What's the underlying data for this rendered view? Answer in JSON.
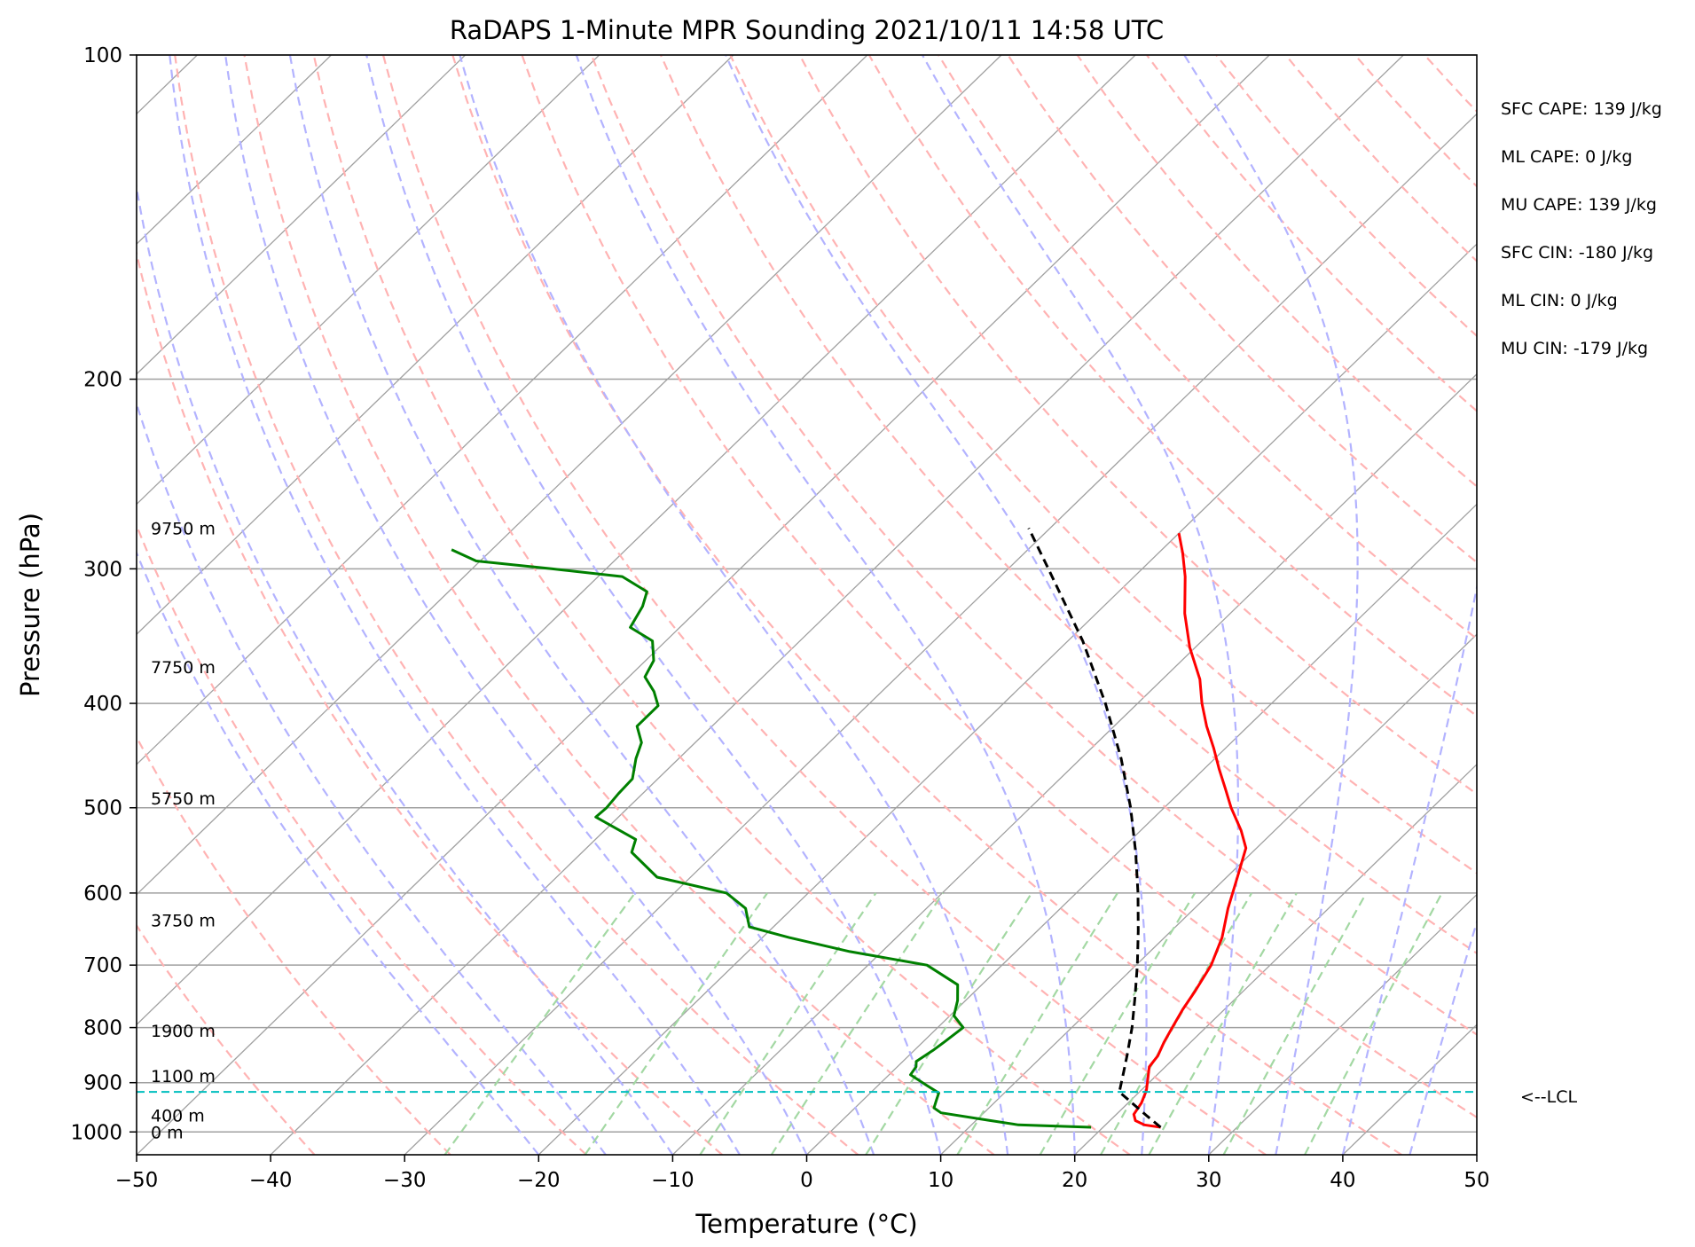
{
  "chart_data": {
    "type": "line",
    "title": "RaDAPS 1-Minute MPR Sounding 2021/10/11 14:58 UTC",
    "xlabel": "Temperature (°C)",
    "ylabel": "Pressure (hPa)",
    "xlim": [
      -50,
      50
    ],
    "ylim": [
      1050,
      100
    ],
    "y_scale": "log",
    "skew_t": true,
    "grid": true,
    "x_ticks": [
      -50,
      -40,
      -30,
      -20,
      -10,
      0,
      10,
      20,
      30,
      40,
      50
    ],
    "y_ticks": [
      100,
      200,
      300,
      400,
      500,
      600,
      700,
      800,
      900,
      1000
    ],
    "series": [
      {
        "color": "#ff0000",
        "points": [
          {
            "p": 990,
            "t": 24.3
          },
          {
            "p": 985,
            "t": 22.9
          },
          {
            "p": 976,
            "t": 21.9
          },
          {
            "p": 963,
            "t": 21.3
          },
          {
            "p": 940,
            "t": 21.0
          },
          {
            "p": 915,
            "t": 20.4
          },
          {
            "p": 895,
            "t": 19.7
          },
          {
            "p": 870,
            "t": 18.8
          },
          {
            "p": 850,
            "t": 18.6
          },
          {
            "p": 825,
            "t": 18.0
          },
          {
            "p": 800,
            "t": 17.5
          },
          {
            "p": 770,
            "t": 16.9
          },
          {
            "p": 740,
            "t": 16.4
          },
          {
            "p": 700,
            "t": 15.6
          },
          {
            "p": 660,
            "t": 14.3
          },
          {
            "p": 620,
            "t": 12.5
          },
          {
            "p": 580,
            "t": 10.8
          },
          {
            "p": 545,
            "t": 9.2
          },
          {
            "p": 525,
            "t": 7.5
          },
          {
            "p": 500,
            "t": 5.0
          },
          {
            "p": 480,
            "t": 3.1
          },
          {
            "p": 460,
            "t": 1.1
          },
          {
            "p": 440,
            "t": -0.9
          },
          {
            "p": 420,
            "t": -3.1
          },
          {
            "p": 400,
            "t": -5.2
          },
          {
            "p": 380,
            "t": -7.2
          },
          {
            "p": 355,
            "t": -10.4
          },
          {
            "p": 330,
            "t": -13.4
          },
          {
            "p": 305,
            "t": -16.2
          },
          {
            "p": 290,
            "t": -18.2
          },
          {
            "p": 278,
            "t": -20.0
          }
        ]
      },
      {
        "color": "#008000",
        "points": [
          {
            "p": 990,
            "t": 19.1
          },
          {
            "p": 985,
            "t": 13.5
          },
          {
            "p": 975,
            "t": 10.8
          },
          {
            "p": 960,
            "t": 6.8
          },
          {
            "p": 950,
            "t": 5.9
          },
          {
            "p": 935,
            "t": 5.5
          },
          {
            "p": 920,
            "t": 5.1
          },
          {
            "p": 903,
            "t": 3.4
          },
          {
            "p": 885,
            "t": 1.6
          },
          {
            "p": 870,
            "t": 1.4
          },
          {
            "p": 860,
            "t": 1.0
          },
          {
            "p": 840,
            "t": 1.4
          },
          {
            "p": 825,
            "t": 1.6
          },
          {
            "p": 800,
            "t": 1.9
          },
          {
            "p": 780,
            "t": 0.3
          },
          {
            "p": 755,
            "t": -0.6
          },
          {
            "p": 730,
            "t": -1.8
          },
          {
            "p": 700,
            "t": -5.6
          },
          {
            "p": 680,
            "t": -12.4
          },
          {
            "p": 660,
            "t": -18.0
          },
          {
            "p": 645,
            "t": -21.8
          },
          {
            "p": 620,
            "t": -23.5
          },
          {
            "p": 600,
            "t": -26.1
          },
          {
            "p": 580,
            "t": -32.5
          },
          {
            "p": 550,
            "t": -36.3
          },
          {
            "p": 535,
            "t": -37.0
          },
          {
            "p": 510,
            "t": -41.7
          },
          {
            "p": 500,
            "t": -41.6
          },
          {
            "p": 485,
            "t": -41.8
          },
          {
            "p": 470,
            "t": -41.9
          },
          {
            "p": 450,
            "t": -43.2
          },
          {
            "p": 435,
            "t": -44.0
          },
          {
            "p": 420,
            "t": -45.6
          },
          {
            "p": 402,
            "t": -45.6
          },
          {
            "p": 390,
            "t": -47.0
          },
          {
            "p": 378,
            "t": -48.8
          },
          {
            "p": 365,
            "t": -49.4
          },
          {
            "p": 350,
            "t": -51.0
          },
          {
            "p": 340,
            "t": -53.7
          },
          {
            "p": 325,
            "t": -54.4
          },
          {
            "p": 315,
            "t": -55.2
          },
          {
            "p": 305,
            "t": -58.2
          },
          {
            "p": 300,
            "t": -64.0
          },
          {
            "p": 295,
            "t": -70.3
          },
          {
            "p": 288,
            "t": -73.0
          }
        ]
      },
      {
        "color": "#000000",
        "dashed": true,
        "points": [
          {
            "p": 990,
            "t": 24.3
          },
          {
            "p": 965,
            "t": 22.3
          },
          {
            "p": 940,
            "t": 20.3
          },
          {
            "p": 918,
            "t": 18.5
          },
          {
            "p": 880,
            "t": 17.3
          },
          {
            "p": 850,
            "t": 16.3
          },
          {
            "p": 800,
            "t": 14.5
          },
          {
            "p": 750,
            "t": 12.4
          },
          {
            "p": 700,
            "t": 10.1
          },
          {
            "p": 650,
            "t": 7.5
          },
          {
            "p": 600,
            "t": 4.6
          },
          {
            "p": 550,
            "t": 1.3
          },
          {
            "p": 500,
            "t": -2.5
          },
          {
            "p": 450,
            "t": -7.0
          },
          {
            "p": 400,
            "t": -12.4
          },
          {
            "p": 350,
            "t": -18.9
          },
          {
            "p": 300,
            "t": -27.0
          },
          {
            "p": 275,
            "t": -31.6
          }
        ]
      }
    ],
    "lcl": {
      "p": 918,
      "label": "<--LCL",
      "color": "#00bfbf"
    },
    "height_labels": [
      {
        "p": 1000,
        "label": "0 m"
      },
      {
        "p": 965,
        "label": "400 m"
      },
      {
        "p": 887,
        "label": "1100 m"
      },
      {
        "p": 805,
        "label": "1900 m"
      },
      {
        "p": 636,
        "label": "3750 m"
      },
      {
        "p": 490,
        "label": "5750 m"
      },
      {
        "p": 370,
        "label": "7750 m"
      },
      {
        "p": 275,
        "label": "9750 m"
      }
    ],
    "stats": [
      "SFC CAPE: 139 J/kg",
      "ML CAPE: 0 J/kg",
      "MU CAPE: 139 J/kg",
      "SFC CIN: -180 J/kg",
      "ML CIN: 0 J/kg",
      "MU CIN: -179 J/kg"
    ],
    "background_line_colors": {
      "isotherm": "#a0a0a0",
      "dry_adiabat": "#ffb3b3",
      "moist_adiabat": "#b3b3ff",
      "mixing_ratio": "#a3d8a3",
      "isobar": "#a0a0a0"
    }
  }
}
